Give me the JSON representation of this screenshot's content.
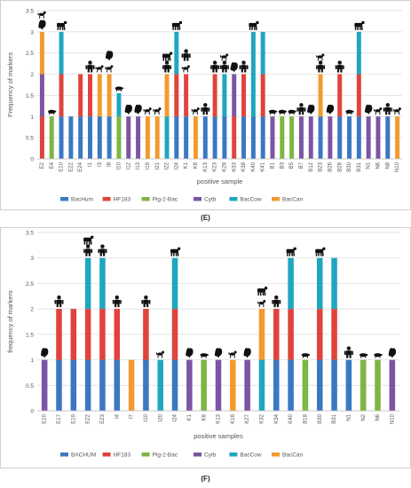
{
  "figure": {
    "caption_e": "(E)",
    "caption_f": "(F)"
  },
  "chart_data": [
    {
      "type": "bar",
      "stacked": true,
      "ylabel": "Frequency of markers",
      "xlabel": "positive sample",
      "ylim": [
        0,
        3.5
      ],
      "yticks": [
        0,
        0.5,
        1,
        1.5,
        2,
        2.5,
        3,
        3.5
      ],
      "grid": true,
      "legend_position": "bottom",
      "categories": [
        "E2",
        "E4",
        "E10",
        "E22",
        "E24",
        "I1",
        "I3",
        "I8",
        "I10",
        "I12",
        "I13",
        "I19",
        "I21",
        "I22",
        "I24",
        "K1",
        "K8",
        "K13",
        "K23",
        "K29",
        "K33",
        "K38",
        "K40",
        "K41",
        "B1",
        "B3",
        "B5",
        "B7",
        "B12",
        "B23",
        "B26",
        "B28",
        "B30",
        "B31",
        "N1",
        "N6",
        "N8",
        "N10"
      ],
      "series": [
        {
          "name": "BacHum",
          "color": "#3a78c2",
          "values": [
            0,
            0,
            1,
            1,
            1,
            1,
            1,
            1,
            0,
            0,
            0,
            0,
            0,
            0,
            1,
            1,
            0,
            1,
            1,
            1,
            0,
            1,
            1,
            1,
            0,
            0,
            0,
            0,
            0,
            1,
            0,
            1,
            1,
            1,
            0,
            0,
            1,
            0
          ]
        },
        {
          "name": "HF183",
          "color": "#e0433b",
          "values": [
            1,
            0,
            1,
            0,
            1,
            1,
            0,
            0,
            0,
            0,
            0,
            0,
            0,
            0,
            1,
            1,
            0,
            0,
            1,
            0,
            1,
            1,
            0,
            1,
            0,
            0,
            0,
            0,
            0,
            0,
            0,
            1,
            0,
            1,
            0,
            0,
            0,
            0
          ]
        },
        {
          "name": "Pig-2-Bac",
          "color": "#7db642",
          "values": [
            0,
            1,
            0,
            0,
            0,
            0,
            0,
            0,
            1,
            0,
            0,
            0,
            0,
            0,
            0,
            0,
            0,
            0,
            0,
            0,
            0,
            0,
            0,
            0,
            0,
            1,
            1,
            0,
            0,
            0,
            0,
            0,
            0,
            0,
            0,
            0,
            0,
            0
          ]
        },
        {
          "name": "Cytb",
          "color": "#7b55a3",
          "values": [
            1,
            0,
            0,
            0,
            0,
            0,
            0,
            0,
            0,
            1,
            1,
            0,
            0,
            0,
            0,
            0,
            0,
            0,
            0,
            0,
            1,
            0,
            0,
            0,
            1,
            0,
            0,
            1,
            1,
            0,
            1,
            0,
            0,
            0,
            1,
            1,
            0,
            0
          ]
        },
        {
          "name": "BacCow",
          "color": "#1ea7bf",
          "values": [
            0,
            0,
            1,
            0,
            0,
            0,
            0,
            0,
            0.55,
            0,
            0,
            0,
            0,
            1,
            1,
            0,
            0,
            0,
            0,
            1,
            0,
            0,
            2,
            1,
            0,
            0,
            0,
            0,
            0,
            0,
            0,
            0,
            0,
            1,
            0,
            0,
            0,
            0
          ]
        },
        {
          "name": "BacCan",
          "color": "#f39a2e",
          "values": [
            1,
            0,
            0,
            0,
            0,
            0,
            1,
            1,
            0,
            0,
            0,
            1,
            1,
            1,
            0,
            0,
            1,
            0,
            0,
            0,
            0,
            0,
            0,
            0,
            0,
            0,
            0,
            0,
            0,
            1,
            0,
            0,
            0,
            0,
            0,
            0,
            0,
            1
          ]
        }
      ],
      "icons": [
        [
          "chicken",
          "dog"
        ],
        [
          "pig"
        ],
        [
          "cow"
        ],
        [],
        [],
        [
          "human"
        ],
        [
          "dog"
        ],
        [
          "dog",
          "chicken"
        ],
        [
          "pig"
        ],
        [
          "chicken"
        ],
        [
          "chicken"
        ],
        [
          "dog"
        ],
        [
          "dog"
        ],
        [
          "human",
          "cow"
        ],
        [
          "cow"
        ],
        [
          "dog",
          "human"
        ],
        [
          "dog"
        ],
        [
          "human"
        ],
        [
          "human"
        ],
        [
          "human",
          "dog"
        ],
        [
          "chicken"
        ],
        [
          "human"
        ],
        [
          "cow"
        ],
        [],
        [
          "pig"
        ],
        [
          "pig"
        ],
        [
          "pig"
        ],
        [
          "human"
        ],
        [
          "chicken"
        ],
        [
          "human",
          "dog"
        ],
        [
          "chicken"
        ],
        [
          "human"
        ],
        [
          "pig"
        ],
        [
          "cow"
        ],
        [
          "chicken"
        ],
        [
          "dog"
        ],
        [
          "human"
        ],
        [
          "dog"
        ]
      ]
    },
    {
      "type": "bar",
      "stacked": true,
      "ylabel": "frequency of markers",
      "xlabel": "positive samples",
      "ylim": [
        0,
        3.5
      ],
      "yticks": [
        0,
        0.5,
        1,
        1.5,
        2,
        2.5,
        3,
        3.5
      ],
      "grid": true,
      "legend_position": "bottom",
      "categories": [
        "E10",
        "E17",
        "E19",
        "E22",
        "E23",
        "I4",
        "I7",
        "I10",
        "I20",
        "I24",
        "K1",
        "K8",
        "K13",
        "K18",
        "K27",
        "K32",
        "K34",
        "K40",
        "B18",
        "B30",
        "B31",
        "N1",
        "N2",
        "N6",
        "N10"
      ],
      "series": [
        {
          "name": "BACHUM",
          "color": "#3a78c2",
          "values": [
            0,
            1,
            1,
            1,
            1,
            1,
            0,
            1,
            0,
            1,
            0,
            0,
            0,
            0,
            0,
            0,
            1,
            1,
            0,
            1,
            1,
            1,
            0,
            0,
            0
          ]
        },
        {
          "name": "HF183",
          "color": "#e0433b",
          "values": [
            0,
            1,
            1,
            1,
            1,
            1,
            0,
            1,
            0,
            1,
            0,
            0,
            0,
            0,
            0,
            0,
            1,
            1,
            0,
            1,
            1,
            0,
            0,
            0,
            0
          ]
        },
        {
          "name": "Pig-2-Bac",
          "color": "#7db642",
          "values": [
            0,
            0,
            0,
            0,
            0,
            0,
            0,
            0,
            0,
            0,
            0,
            1,
            0,
            0,
            0,
            0,
            0,
            0,
            1,
            0,
            0,
            0,
            1,
            1,
            0
          ]
        },
        {
          "name": "Cytb",
          "color": "#7b55a3",
          "values": [
            1,
            0,
            0,
            0,
            0,
            0,
            0,
            0,
            0,
            0,
            1,
            0,
            1,
            0,
            1,
            0,
            0,
            0,
            0,
            0,
            0,
            0,
            0,
            0,
            1
          ]
        },
        {
          "name": "BacCow",
          "color": "#1ea7bf",
          "values": [
            0,
            0,
            0,
            1,
            1,
            0,
            0,
            0,
            1,
            1,
            0,
            0,
            0,
            0,
            0,
            1,
            0,
            1,
            0,
            1,
            1,
            0,
            0,
            0,
            0
          ]
        },
        {
          "name": "BacCan",
          "color": "#f39a2e",
          "values": [
            0,
            0,
            0,
            0,
            0,
            0,
            1,
            0,
            0,
            0,
            0,
            0,
            0,
            1,
            0,
            1,
            0,
            0,
            0,
            0,
            0,
            0,
            0,
            0,
            0
          ]
        }
      ],
      "icons": [
        [
          "chicken"
        ],
        [
          "human"
        ],
        [],
        [
          "human",
          "cow"
        ],
        [
          "human"
        ],
        [
          "human"
        ],
        [],
        [
          "human"
        ],
        [
          "dog"
        ],
        [
          "cow"
        ],
        [
          "chicken"
        ],
        [
          "pig"
        ],
        [
          "chicken"
        ],
        [
          "dog"
        ],
        [
          "chicken"
        ],
        [
          "dog",
          "cow"
        ],
        [
          "human"
        ],
        [
          "cow"
        ],
        [
          "pig"
        ],
        [
          "cow"
        ],
        [],
        [
          "human"
        ],
        [
          "pig"
        ],
        [
          "pig"
        ],
        [
          "chicken"
        ]
      ]
    }
  ]
}
